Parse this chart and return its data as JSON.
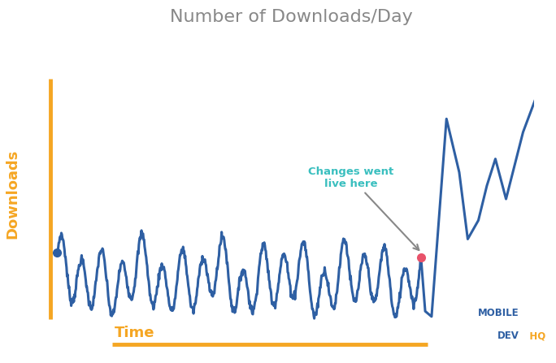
{
  "title": "Number of Downloads/Day",
  "title_color": "#888888",
  "title_fontsize": 16,
  "xlabel": "Time",
  "ylabel": "Downloads",
  "axis_label_color": "#F5A623",
  "axis_label_fontsize": 13,
  "line_color": "#2E5FA3",
  "line_width": 2.2,
  "bg_color": "#FFFFFF",
  "annotation_text": "Changes went\nlive here",
  "annotation_color": "#3ABFBF",
  "annotation_fontsize": 9.5,
  "dot_start_color": "#2E5FA3",
  "dot_end_color": "#E8526A",
  "arrow_color": "#888888",
  "spike_arrow_color": "#2E5FA3",
  "mobile_color": "#2E5FA3",
  "devhq_color_mobile": "#2E5FA3",
  "devhq_color_dev": "#F5A623"
}
